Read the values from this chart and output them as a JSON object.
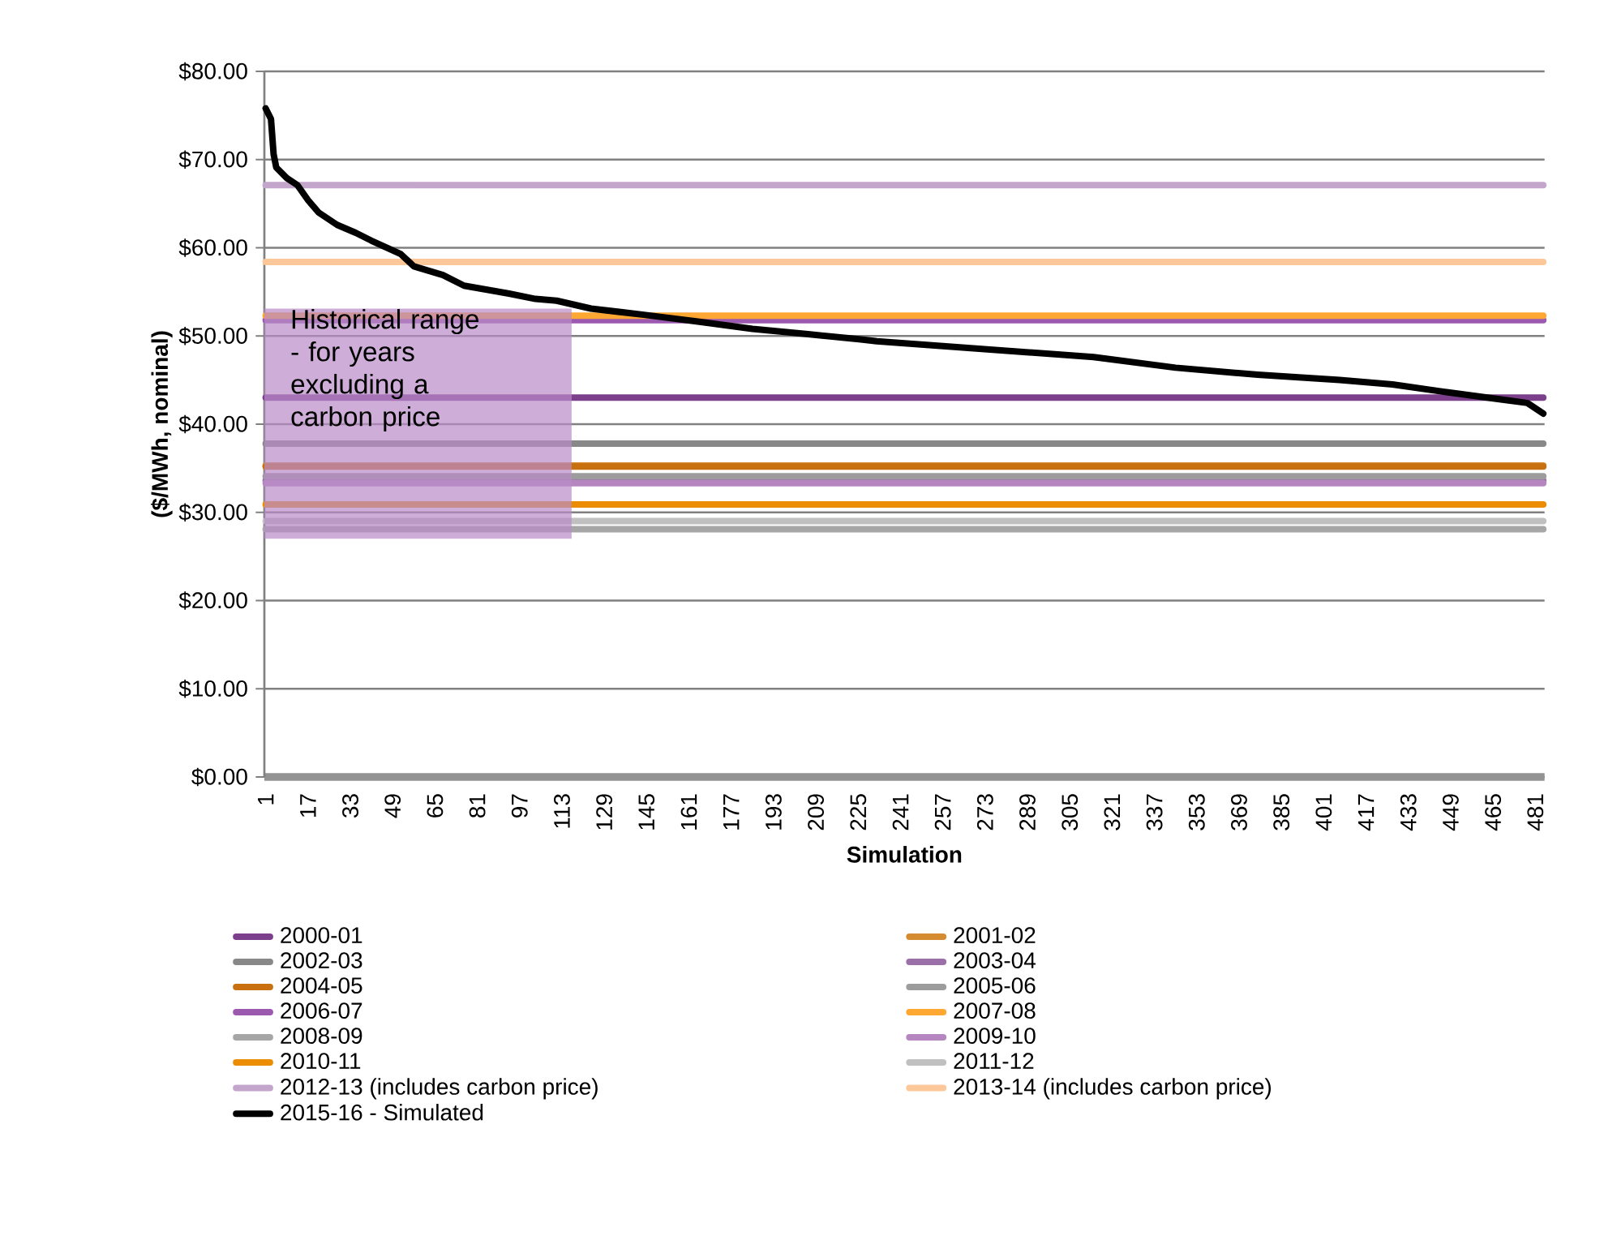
{
  "chart_data": {
    "type": "line",
    "xlabel": "Simulation",
    "ylabel": "($/MWh, nominal)",
    "xlim": [
      0.5,
      484.5
    ],
    "xticks": [
      1,
      17,
      33,
      49,
      65,
      81,
      97,
      113,
      129,
      145,
      161,
      177,
      193,
      209,
      225,
      241,
      257,
      273,
      289,
      305,
      321,
      337,
      353,
      369,
      385,
      401,
      417,
      433,
      449,
      465,
      481
    ],
    "ylim": [
      0,
      80
    ],
    "yticks": [
      {
        "value": 0,
        "label": "$0.00"
      },
      {
        "value": 10,
        "label": "$10.00"
      },
      {
        "value": 20,
        "label": "$20.00"
      },
      {
        "value": 30,
        "label": "$30.00"
      },
      {
        "value": 40,
        "label": "$40.00"
      },
      {
        "value": 50,
        "label": "$50.00"
      },
      {
        "value": 60,
        "label": "$60.00"
      },
      {
        "value": 70,
        "label": "$70.00"
      },
      {
        "value": 80,
        "label": "$80.00"
      }
    ],
    "grid": "y",
    "legend": "bottom",
    "line_style": "solid",
    "bands": [
      {
        "axis": "y",
        "from": 27.0,
        "to": 53.1,
        "label": "Historical range - for years excluding a carbon price",
        "color": "#b98bc7"
      }
    ],
    "series": [
      {
        "name": "2000-01",
        "color": "#7b3f8c",
        "x": [
          1,
          484
        ],
        "values": [
          43.0,
          43.0
        ]
      },
      {
        "name": "2001-02",
        "color": "#d58c30",
        "x": [
          1,
          484
        ],
        "values": [
          35.3,
          35.3
        ]
      },
      {
        "name": "2002-03",
        "color": "#888888",
        "x": [
          1,
          484
        ],
        "values": [
          37.8,
          37.8
        ]
      },
      {
        "name": "2003-04",
        "color": "#9b6fa8",
        "x": [
          1,
          484
        ],
        "values": [
          33.6,
          33.6
        ]
      },
      {
        "name": "2004-05",
        "color": "#c8700f",
        "x": [
          1,
          484
        ],
        "values": [
          35.2,
          35.2
        ]
      },
      {
        "name": "2005-06",
        "color": "#9c9c9c",
        "x": [
          1,
          484
        ],
        "values": [
          34.1,
          34.1
        ]
      },
      {
        "name": "2006-07",
        "color": "#9b59b0",
        "x": [
          1,
          484
        ],
        "values": [
          51.8,
          51.8
        ]
      },
      {
        "name": "2007-08",
        "color": "#ffa733",
        "x": [
          1,
          484
        ],
        "values": [
          52.3,
          52.3
        ]
      },
      {
        "name": "2008-09",
        "color": "#a6a6a6",
        "x": [
          1,
          484
        ],
        "values": [
          28.1,
          28.1
        ]
      },
      {
        "name": "2009-10",
        "color": "#b686c0",
        "x": [
          1,
          484
        ],
        "values": [
          33.3,
          33.3
        ]
      },
      {
        "name": "2010-11",
        "color": "#ec8c00",
        "x": [
          1,
          484
        ],
        "values": [
          30.9,
          30.9
        ]
      },
      {
        "name": "2011-12",
        "color": "#c0c0c0",
        "x": [
          1,
          484
        ],
        "values": [
          29.0,
          29.0
        ]
      },
      {
        "name": "2012-13 (includes carbon price)",
        "color": "#c4a5cc",
        "x": [
          1,
          484
        ],
        "values": [
          67.1,
          67.1
        ]
      },
      {
        "name": "2013-14 (includes carbon price)",
        "color": "#fcc89a",
        "x": [
          1,
          484
        ],
        "values": [
          58.4,
          58.4
        ]
      },
      {
        "name": "2015-16 - Simulated",
        "color": "#000000",
        "x": [
          1,
          3,
          4,
          5,
          9,
          13,
          17,
          21,
          28,
          35,
          41,
          52,
          57,
          68,
          76,
          93,
          103,
          111,
          124,
          144,
          165,
          185,
          206,
          226,
          232,
          273,
          314,
          345,
          376,
          407,
          427,
          448,
          468,
          478,
          484
        ],
        "values": [
          75.8,
          74.6,
          70.6,
          69.1,
          67.9,
          67.1,
          65.4,
          64.0,
          62.6,
          61.7,
          60.8,
          59.3,
          57.9,
          56.9,
          55.7,
          54.8,
          54.2,
          54.0,
          53.1,
          52.4,
          51.6,
          50.8,
          50.2,
          49.6,
          49.4,
          48.5,
          47.6,
          46.4,
          45.6,
          45.0,
          44.5,
          43.6,
          42.8,
          42.4,
          41.2
        ]
      }
    ]
  }
}
